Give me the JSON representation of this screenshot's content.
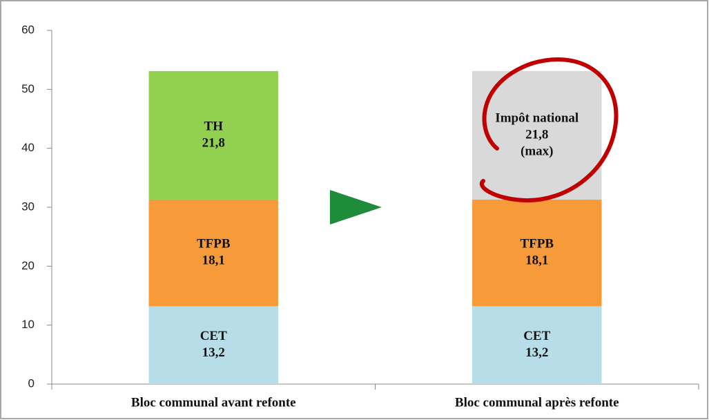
{
  "chart_data": {
    "type": "stacked_bar",
    "categories": [
      "Bloc communal avant refonte",
      "Bloc communal après refonte"
    ],
    "series": [
      {
        "name": "CET",
        "color": "#b7dde8",
        "values": [
          13.2,
          13.2
        ],
        "value_labels": [
          "13,2",
          "13,2"
        ]
      },
      {
        "name": "TFPB",
        "color": "#f79a3a",
        "values": [
          18.1,
          18.1
        ],
        "value_labels": [
          "18,1",
          "18,1"
        ]
      },
      {
        "name": "TH",
        "color": "#92d050",
        "values": [
          21.8,
          null
        ],
        "value_labels": [
          "21,8",
          null
        ]
      },
      {
        "name": "Impôt national",
        "color": "#d9d9d9",
        "values": [
          null,
          21.8
        ],
        "value_labels": [
          null,
          "21,8"
        ]
      }
    ],
    "annotation": "(max)",
    "ylim": [
      0,
      60
    ],
    "yticks": [
      0,
      10,
      20,
      30,
      40,
      50,
      60
    ],
    "grid": false
  }
}
